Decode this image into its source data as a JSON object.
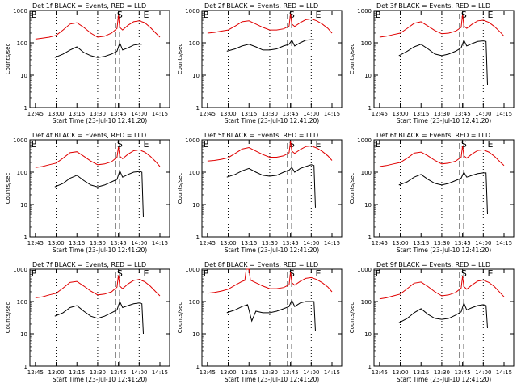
{
  "chart_data": {
    "type": "line",
    "start_time_label": "Start Time (23-Jul-10 12:41:20)",
    "ylabel": "Counts/sec",
    "x_ticks": [
      "12:45",
      "13:00",
      "13:15",
      "13:30",
      "13:45",
      "14:00",
      "14:15"
    ],
    "y_scale": "log",
    "ylim": [
      1,
      1000
    ],
    "y_ticks": [
      "1",
      "10",
      "100",
      "1000"
    ],
    "legend_text": "BLACK = Events, RED = LLD",
    "colors": {
      "events": "#000000",
      "lld": "#e00000",
      "axes": "#000000"
    },
    "event_markers": [
      "E",
      "S",
      "E"
    ],
    "panels": [
      {
        "title": "Det 1f",
        "series": [
          {
            "name": "Events",
            "color": "#000000",
            "x": [
              "12:59",
              "13:05",
              "13:10",
              "13:15",
              "13:20",
              "13:25",
              "13:30",
              "13:35",
              "13:40",
              "13:44",
              "13:46",
              "13:48",
              "13:52",
              "13:56",
              "14:00",
              "14:02"
            ],
            "y": [
              35,
              45,
              60,
              75,
              50,
              40,
              35,
              38,
              45,
              55,
              100,
              60,
              70,
              85,
              90,
              90
            ]
          },
          {
            "name": "LLD",
            "color": "#e00000",
            "x": [
              "12:45",
              "12:50",
              "12:55",
              "13:00",
              "13:05",
              "13:10",
              "13:15",
              "13:20",
              "13:25",
              "13:30",
              "13:35",
              "13:40",
              "13:44",
              "13:45",
              "13:46",
              "13:48",
              "13:52",
              "13:56",
              "14:00",
              "14:04",
              "14:08",
              "14:12",
              "14:15"
            ],
            "y": [
              130,
              140,
              150,
              170,
              250,
              380,
              420,
              300,
              200,
              150,
              160,
              200,
              280,
              700,
              300,
              250,
              350,
              450,
              480,
              420,
              300,
              200,
              150
            ]
          }
        ]
      },
      {
        "title": "Det 2f",
        "series": [
          {
            "name": "Events",
            "color": "#000000",
            "x": [
              "12:59",
              "13:05",
              "13:10",
              "13:15",
              "13:20",
              "13:25",
              "13:30",
              "13:35",
              "13:40",
              "13:44",
              "13:46",
              "13:48",
              "13:52",
              "13:56",
              "14:00",
              "14:02"
            ],
            "y": [
              55,
              65,
              80,
              90,
              75,
              60,
              60,
              65,
              80,
              90,
              120,
              80,
              100,
              120,
              125,
              125
            ]
          },
          {
            "name": "LLD",
            "color": "#e00000",
            "x": [
              "12:45",
              "12:50",
              "12:55",
              "13:00",
              "13:05",
              "13:10",
              "13:15",
              "13:20",
              "13:25",
              "13:30",
              "13:35",
              "13:40",
              "13:44",
              "13:45",
              "13:46",
              "13:48",
              "13:52",
              "13:56",
              "14:00",
              "14:04",
              "14:08",
              "14:12",
              "14:15"
            ],
            "y": [
              200,
              210,
              230,
              250,
              330,
              450,
              480,
              380,
              300,
              250,
              250,
              270,
              330,
              800,
              380,
              320,
              420,
              520,
              550,
              480,
              380,
              280,
              200
            ]
          }
        ]
      },
      {
        "title": "Det 3f",
        "series": [
          {
            "name": "Events",
            "color": "#000000",
            "x": [
              "12:59",
              "13:05",
              "13:10",
              "13:15",
              "13:20",
              "13:25",
              "13:30",
              "13:35",
              "13:40",
              "13:44",
              "13:46",
              "13:48",
              "13:52",
              "13:56",
              "14:00",
              "14:02",
              "14:03"
            ],
            "y": [
              40,
              55,
              75,
              90,
              65,
              45,
              40,
              45,
              55,
              70,
              120,
              80,
              95,
              110,
              115,
              110,
              5
            ]
          },
          {
            "name": "LLD",
            "color": "#e00000",
            "x": [
              "12:45",
              "12:50",
              "12:55",
              "13:00",
              "13:05",
              "13:10",
              "13:15",
              "13:20",
              "13:25",
              "13:30",
              "13:35",
              "13:40",
              "13:44",
              "13:45",
              "13:46",
              "13:48",
              "13:52",
              "13:56",
              "14:00",
              "14:04",
              "14:08",
              "14:12",
              "14:15"
            ],
            "y": [
              150,
              160,
              180,
              200,
              280,
              400,
              450,
              330,
              240,
              190,
              200,
              230,
              300,
              750,
              330,
              280,
              380,
              480,
              500,
              430,
              320,
              220,
              160
            ]
          }
        ]
      },
      {
        "title": "Det 4f",
        "series": [
          {
            "name": "Events",
            "color": "#000000",
            "x": [
              "12:59",
              "13:05",
              "13:10",
              "13:15",
              "13:20",
              "13:25",
              "13:30",
              "13:35",
              "13:40",
              "13:44",
              "13:46",
              "13:48",
              "13:52",
              "13:56",
              "14:00",
              "14:02",
              "14:03"
            ],
            "y": [
              35,
              45,
              65,
              80,
              55,
              40,
              35,
              40,
              50,
              60,
              110,
              70,
              85,
              100,
              105,
              100,
              4
            ]
          },
          {
            "name": "LLD",
            "color": "#e00000",
            "x": [
              "12:45",
              "12:50",
              "12:55",
              "13:00",
              "13:05",
              "13:10",
              "13:15",
              "13:20",
              "13:25",
              "13:30",
              "13:35",
              "13:40",
              "13:44",
              "13:45",
              "13:46",
              "13:48",
              "13:52",
              "13:56",
              "14:00",
              "14:04",
              "14:08",
              "14:12",
              "14:15"
            ],
            "y": [
              140,
              150,
              170,
              190,
              270,
              400,
              430,
              310,
              220,
              170,
              180,
              210,
              290,
              600,
              310,
              260,
              360,
              460,
              490,
              420,
              310,
              210,
              150
            ]
          }
        ]
      },
      {
        "title": "Det 5f",
        "series": [
          {
            "name": "Events",
            "color": "#000000",
            "x": [
              "12:59",
              "13:05",
              "13:10",
              "13:15",
              "13:20",
              "13:25",
              "13:30",
              "13:35",
              "13:40",
              "13:44",
              "13:46",
              "13:48",
              "13:52",
              "13:56",
              "14:00",
              "14:02",
              "14:03"
            ],
            "y": [
              70,
              85,
              110,
              130,
              100,
              80,
              75,
              80,
              100,
              115,
              140,
              100,
              130,
              150,
              170,
              160,
              8
            ]
          },
          {
            "name": "LLD",
            "color": "#e00000",
            "x": [
              "12:45",
              "12:50",
              "12:55",
              "13:00",
              "13:05",
              "13:10",
              "13:15",
              "13:20",
              "13:25",
              "13:30",
              "13:35",
              "13:40",
              "13:44",
              "13:45",
              "13:46",
              "13:48",
              "13:52",
              "13:56",
              "14:00",
              "14:04",
              "14:08",
              "14:12",
              "14:15"
            ],
            "y": [
              220,
              230,
              250,
              280,
              380,
              520,
              580,
              450,
              350,
              290,
              290,
              320,
              400,
              900,
              450,
              380,
              500,
              620,
              650,
              560,
              440,
              320,
              230
            ]
          }
        ]
      },
      {
        "title": "Det 6f",
        "series": [
          {
            "name": "Events",
            "color": "#000000",
            "x": [
              "12:59",
              "13:05",
              "13:10",
              "13:15",
              "13:20",
              "13:25",
              "13:30",
              "13:35",
              "13:40",
              "13:44",
              "13:46",
              "13:48",
              "13:52",
              "13:56",
              "14:00",
              "14:02",
              "14:03"
            ],
            "y": [
              40,
              50,
              70,
              85,
              60,
              45,
              40,
              45,
              55,
              65,
              100,
              70,
              80,
              90,
              95,
              95,
              5
            ]
          },
          {
            "name": "LLD",
            "color": "#e00000",
            "x": [
              "12:45",
              "12:50",
              "12:55",
              "13:00",
              "13:05",
              "13:10",
              "13:15",
              "13:20",
              "13:25",
              "13:30",
              "13:35",
              "13:40",
              "13:44",
              "13:45",
              "13:46",
              "13:48",
              "13:52",
              "13:56",
              "14:00",
              "14:04",
              "14:08",
              "14:12",
              "14:15"
            ],
            "y": [
              150,
              160,
              180,
              200,
              270,
              390,
              420,
              320,
              230,
              180,
              190,
              220,
              290,
              650,
              320,
              270,
              370,
              470,
              490,
              420,
              310,
              210,
              160
            ]
          }
        ]
      },
      {
        "title": "Det 7f",
        "series": [
          {
            "name": "Events",
            "color": "#000000",
            "x": [
              "12:59",
              "13:05",
              "13:10",
              "13:15",
              "13:20",
              "13:25",
              "13:30",
              "13:35",
              "13:40",
              "13:44",
              "13:46",
              "13:48",
              "13:52",
              "13:56",
              "14:00",
              "14:02",
              "14:03"
            ],
            "y": [
              35,
              45,
              65,
              75,
              50,
              35,
              30,
              35,
              45,
              55,
              100,
              65,
              75,
              85,
              90,
              85,
              10
            ]
          },
          {
            "name": "LLD",
            "color": "#e00000",
            "x": [
              "12:45",
              "12:50",
              "12:55",
              "13:00",
              "13:05",
              "13:10",
              "13:15",
              "13:20",
              "13:25",
              "13:30",
              "13:35",
              "13:40",
              "13:44",
              "13:45",
              "13:46",
              "13:48",
              "13:52",
              "13:56",
              "14:00",
              "14:04",
              "14:08",
              "14:12",
              "14:15"
            ],
            "y": [
              130,
              140,
              160,
              180,
              260,
              390,
              420,
              300,
              210,
              160,
              170,
              200,
              280,
              650,
              300,
              250,
              350,
              450,
              480,
              410,
              300,
              200,
              150
            ]
          }
        ]
      },
      {
        "title": "Det 8f",
        "series": [
          {
            "name": "Events",
            "color": "#000000",
            "x": [
              "12:59",
              "13:05",
              "13:10",
              "13:14",
              "13:17",
              "13:20",
              "13:25",
              "13:30",
              "13:35",
              "13:40",
              "13:44",
              "13:46",
              "13:48",
              "13:52",
              "13:56",
              "14:00",
              "14:02",
              "14:03"
            ],
            "y": [
              45,
              55,
              70,
              80,
              25,
              50,
              45,
              45,
              50,
              60,
              70,
              110,
              70,
              90,
              100,
              100,
              100,
              12
            ]
          },
          {
            "name": "LLD",
            "color": "#e00000",
            "x": [
              "12:45",
              "12:50",
              "12:55",
              "13:00",
              "13:05",
              "13:10",
              "13:12",
              "13:13",
              "13:15",
              "13:16",
              "13:20",
              "13:25",
              "13:30",
              "13:35",
              "13:40",
              "13:44",
              "13:45",
              "13:46",
              "13:48",
              "13:52",
              "13:56",
              "14:00",
              "14:04",
              "14:08",
              "14:12",
              "14:15"
            ],
            "y": [
              180,
              190,
              210,
              240,
              320,
              420,
              450,
              1000,
              1000,
              460,
              380,
              300,
              250,
              250,
              270,
              330,
              800,
              380,
              320,
              420,
              520,
              550,
              480,
              380,
              280,
              200
            ]
          }
        ]
      },
      {
        "title": "Det 9f",
        "series": [
          {
            "name": "Events",
            "color": "#000000",
            "x": [
              "12:59",
              "13:05",
              "13:10",
              "13:15",
              "13:20",
              "13:25",
              "13:30",
              "13:35",
              "13:40",
              "13:44",
              "13:46",
              "13:48",
              "13:52",
              "13:56",
              "14:00",
              "14:02",
              "14:03"
            ],
            "y": [
              22,
              30,
              45,
              60,
              40,
              30,
              28,
              30,
              38,
              48,
              90,
              55,
              65,
              75,
              80,
              75,
              15
            ]
          },
          {
            "name": "LLD",
            "color": "#e00000",
            "x": [
              "12:45",
              "12:50",
              "12:55",
              "13:00",
              "13:05",
              "13:10",
              "13:15",
              "13:20",
              "13:25",
              "13:30",
              "13:35",
              "13:40",
              "13:44",
              "13:45",
              "13:46",
              "13:48",
              "13:52",
              "13:56",
              "14:00",
              "14:04",
              "14:08",
              "14:12",
              "14:15"
            ],
            "y": [
              120,
              130,
              150,
              170,
              250,
              370,
              400,
              290,
              200,
              150,
              160,
              190,
              260,
              600,
              290,
              240,
              330,
              430,
              460,
              390,
              290,
              190,
              140
            ]
          }
        ]
      }
    ]
  }
}
